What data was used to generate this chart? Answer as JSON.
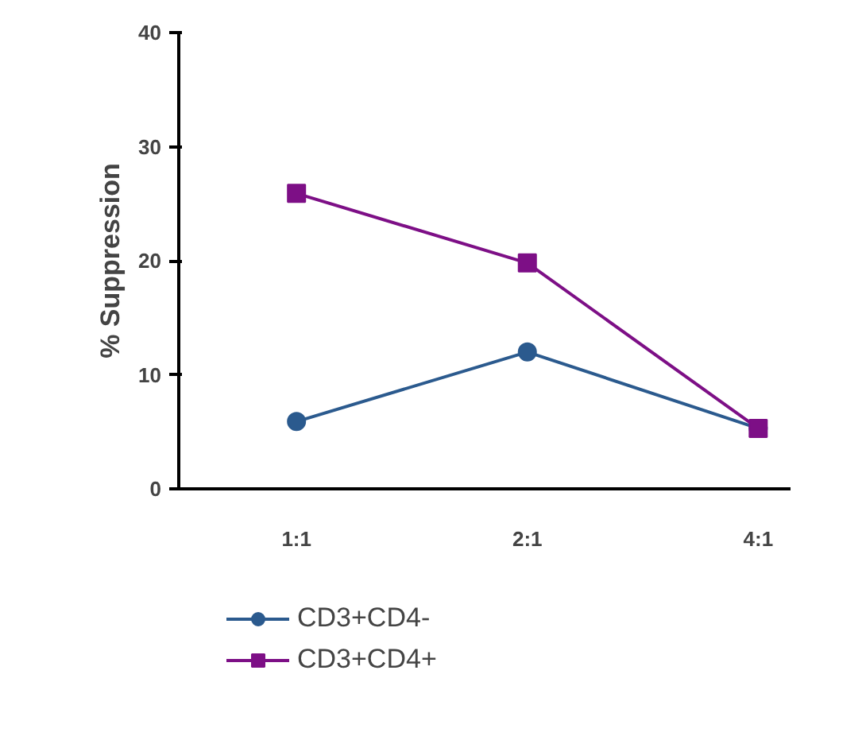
{
  "chart_data": {
    "type": "line",
    "ylabel": "% Suppression",
    "categories": [
      "1:1",
      "2:1",
      "4:1"
    ],
    "series": [
      {
        "name": "CD3+CD4-",
        "color": "#2b5a8e",
        "marker": "circle",
        "values": [
          5.9,
          12.0,
          5.3
        ]
      },
      {
        "name": "CD3+CD4+",
        "color": "#7d0f86",
        "marker": "square",
        "values": [
          25.9,
          19.8,
          5.3
        ]
      }
    ],
    "ylim": [
      0,
      40
    ],
    "yticks": [
      0,
      10,
      20,
      30,
      40
    ],
    "grid": false,
    "legend": "bottom left",
    "line_style": "solid"
  }
}
